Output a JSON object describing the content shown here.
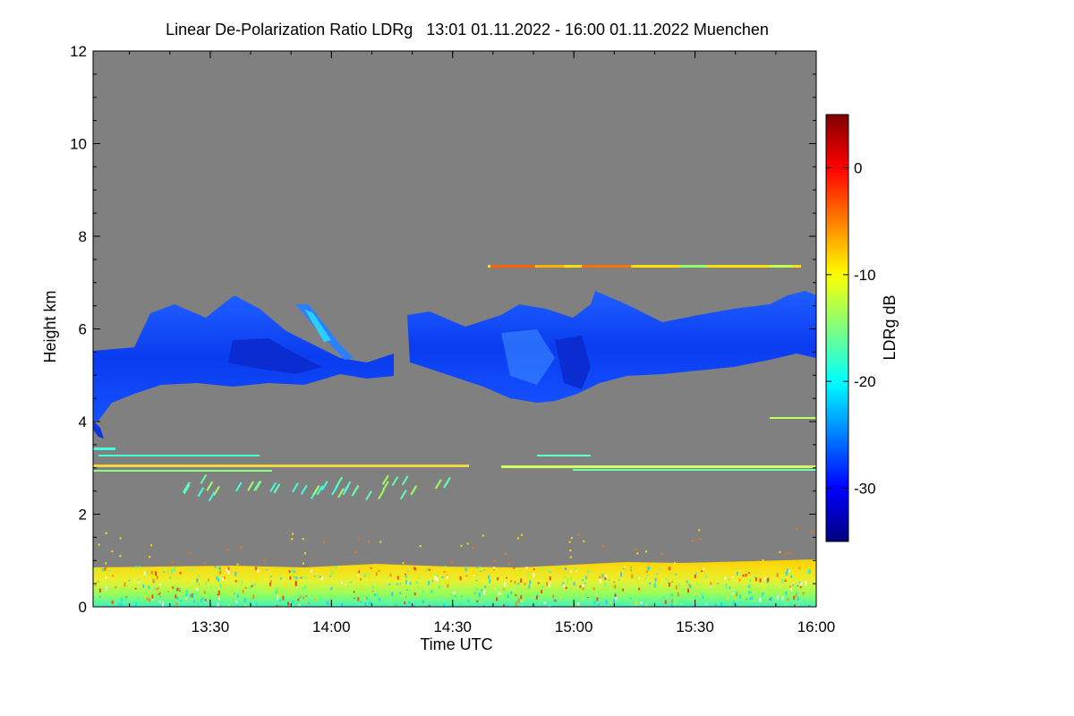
{
  "chart_data": {
    "type": "heatmap",
    "title": "Linear De-Polarization Ratio LDRg   13:01 01.11.2022 - 16:00 01.11.2022 Muenchen",
    "xlabel": "Time UTC",
    "ylabel": "Height km",
    "x_range_hours": [
      13.0167,
      16.0
    ],
    "x_ticks": [
      {
        "label": "13:30",
        "value": 13.5
      },
      {
        "label": "14:00",
        "value": 14.0
      },
      {
        "label": "14:30",
        "value": 14.5
      },
      {
        "label": "15:00",
        "value": 15.0
      },
      {
        "label": "15:30",
        "value": 15.5
      },
      {
        "label": "16:00",
        "value": 16.0
      }
    ],
    "y_range_km": [
      0,
      12
    ],
    "y_ticks": [
      {
        "label": "0",
        "value": 0
      },
      {
        "label": "2",
        "value": 2
      },
      {
        "label": "4",
        "value": 4
      },
      {
        "label": "6",
        "value": 6
      },
      {
        "label": "8",
        "value": 8
      },
      {
        "label": "10",
        "value": 10
      },
      {
        "label": "12",
        "value": 12
      }
    ],
    "colorbar": {
      "label": "LDRg dB",
      "range": [
        -35,
        5
      ],
      "ticks": [
        {
          "label": "0",
          "value": 0
        },
        {
          "label": "-10",
          "value": -10
        },
        {
          "label": "-20",
          "value": -20
        },
        {
          "label": "-30",
          "value": -30
        }
      ],
      "colormap": [
        "#00007f",
        "#0000ff",
        "#007fff",
        "#00ffff",
        "#7fff7f",
        "#ffff00",
        "#ff7f00",
        "#ff0000",
        "#7f0000"
      ]
    },
    "background_color": "#808080",
    "features": [
      {
        "name": "cirrus-cloud",
        "t_start": 13.0167,
        "t_end": 16.0,
        "bottom_km": 4.4,
        "top_km": 6.9,
        "ldr_db": -28
      },
      {
        "name": "upper-thin-layer",
        "t_start": 14.6,
        "t_end": 15.95,
        "height_km": 7.3,
        "ldr_db": -9
      },
      {
        "name": "mid-layer",
        "t_start": 13.0167,
        "t_end": 16.0,
        "height_km": 3.0,
        "ldr_db": -13
      },
      {
        "name": "boundary-layer",
        "t_start": 13.0167,
        "t_end": 16.0,
        "bottom_km": 0,
        "top_km": 0.9,
        "ldr_db": -12
      }
    ]
  }
}
